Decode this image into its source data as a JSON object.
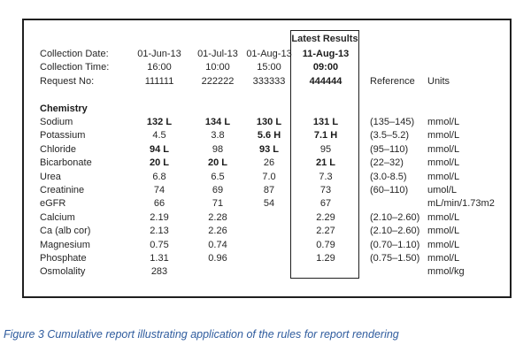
{
  "report": {
    "latest_box_label": "Latest Results",
    "rows": [
      {
        "label": "Collection Date:",
        "values": [
          {
            "t": "01-Jun-13"
          },
          {
            "t": "01-Jul-13"
          },
          {
            "t": "01-Aug-13"
          },
          {
            "t": "11-Aug-13",
            "b": true
          }
        ],
        "ref": "",
        "units": ""
      },
      {
        "label": "Collection Time:",
        "values": [
          {
            "t": "16:00"
          },
          {
            "t": "10:00"
          },
          {
            "t": "15:00"
          },
          {
            "t": "09:00",
            "b": true
          }
        ],
        "ref": "",
        "units": ""
      },
      {
        "label": "Request No:",
        "values": [
          {
            "t": "111111"
          },
          {
            "t": "222222"
          },
          {
            "t": "333333"
          },
          {
            "t": "444444",
            "b": true
          }
        ],
        "ref": "Reference",
        "units": "Units"
      },
      {
        "label": "",
        "values": [
          {
            "t": ""
          },
          {
            "t": ""
          },
          {
            "t": ""
          },
          {
            "t": ""
          }
        ],
        "ref": "",
        "units": ""
      },
      {
        "label": "Chemistry",
        "labelBold": true,
        "values": [
          {
            "t": ""
          },
          {
            "t": ""
          },
          {
            "t": ""
          },
          {
            "t": ""
          }
        ],
        "ref": "",
        "units": ""
      },
      {
        "label": "Sodium",
        "values": [
          {
            "t": "132 L",
            "b": true
          },
          {
            "t": "134 L",
            "b": true
          },
          {
            "t": "130 L",
            "b": true
          },
          {
            "t": "131 L",
            "b": true
          }
        ],
        "ref": "(135–145)",
        "units": "mmol/L"
      },
      {
        "label": "Potassium",
        "values": [
          {
            "t": "4.5"
          },
          {
            "t": "3.8"
          },
          {
            "t": "5.6 H",
            "b": true
          },
          {
            "t": "7.1 H",
            "b": true
          }
        ],
        "ref": "(3.5–5.2)",
        "units": "mmol/L"
      },
      {
        "label": "Chloride",
        "values": [
          {
            "t": "94 L",
            "b": true
          },
          {
            "t": "98"
          },
          {
            "t": "93 L",
            "b": true
          },
          {
            "t": "95"
          }
        ],
        "ref": "(95–110)",
        "units": "mmol/L"
      },
      {
        "label": "Bicarbonate",
        "values": [
          {
            "t": "20 L",
            "b": true
          },
          {
            "t": "20 L",
            "b": true
          },
          {
            "t": "26"
          },
          {
            "t": "21 L",
            "b": true
          }
        ],
        "ref": "(22–32)",
        "units": "mmol/L"
      },
      {
        "label": "Urea",
        "values": [
          {
            "t": "6.8"
          },
          {
            "t": "6.5"
          },
          {
            "t": "7.0"
          },
          {
            "t": "7.3"
          }
        ],
        "ref": "(3.0-8.5)",
        "units": "mmol/L"
      },
      {
        "label": "Creatinine",
        "values": [
          {
            "t": "74"
          },
          {
            "t": "69"
          },
          {
            "t": "87"
          },
          {
            "t": "73"
          }
        ],
        "ref": "(60–110)",
        "units": "umol/L"
      },
      {
        "label": "eGFR",
        "values": [
          {
            "t": "66"
          },
          {
            "t": "71"
          },
          {
            "t": "54"
          },
          {
            "t": "67"
          }
        ],
        "ref": "",
        "units": "mL/min/1.73m2"
      },
      {
        "label": "Calcium",
        "values": [
          {
            "t": "2.19"
          },
          {
            "t": "2.28"
          },
          {
            "t": ""
          },
          {
            "t": "2.29"
          }
        ],
        "ref": "(2.10–2.60)",
        "units": "mmol/L"
      },
      {
        "label": "Ca (alb cor)",
        "values": [
          {
            "t": "2.13"
          },
          {
            "t": "2.26"
          },
          {
            "t": ""
          },
          {
            "t": "2.27"
          }
        ],
        "ref": "(2.10–2.60)",
        "units": "mmol/L"
      },
      {
        "label": "Magnesium",
        "values": [
          {
            "t": "0.75"
          },
          {
            "t": "0.74"
          },
          {
            "t": ""
          },
          {
            "t": "0.79"
          }
        ],
        "ref": "(0.70–1.10)",
        "units": "mmol/L"
      },
      {
        "label": "Phosphate",
        "values": [
          {
            "t": "1.31"
          },
          {
            "t": "0.96"
          },
          {
            "t": ""
          },
          {
            "t": "1.29"
          }
        ],
        "ref": "(0.75–1.50)",
        "units": "mmol/L"
      },
      {
        "label": "Osmolality",
        "values": [
          {
            "t": "283"
          },
          {
            "t": ""
          },
          {
            "t": ""
          },
          {
            "t": ""
          }
        ],
        "ref": "",
        "units": "mmol/kg"
      }
    ]
  },
  "caption": "Figure 3 Cumulative report illustrating application of the rules for report rendering",
  "colors": {
    "text": "#262626",
    "bold_text": "#1a1a1a",
    "border": "#1f1f1f",
    "caption": "#2F5C9E",
    "background": "#ffffff"
  }
}
